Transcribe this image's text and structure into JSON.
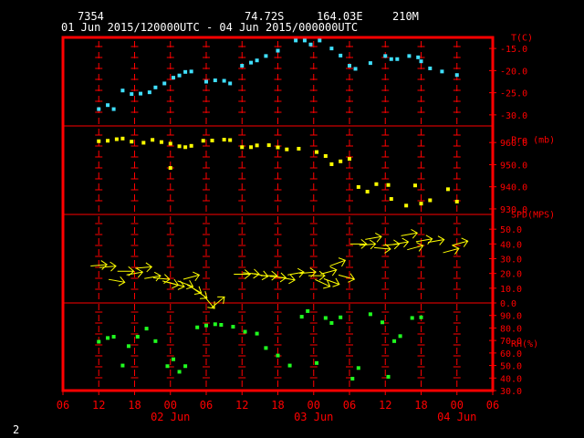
{
  "header": {
    "station_id": "7354",
    "lat": "74.72S",
    "lon": "164.03E",
    "elev": "210M",
    "time_range": "01 Jun 2015/120000UTC - 04 Jun 2015/000000UTC"
  },
  "footer": {
    "page_number": "2"
  },
  "colors": {
    "frame": "#ff0000",
    "axis": "#ff0000",
    "temp": "#40e0ff",
    "pres": "#ffff00",
    "wind": "#ffff00",
    "rh": "#20ff20"
  },
  "chart_data": {
    "type": "scatter",
    "x_axis": {
      "unit": "hours since 2015-06-01 00:00 UTC",
      "range_hours": [
        6,
        78
      ],
      "tick_labels": [
        "06",
        "12",
        "18",
        "00",
        "06",
        "12",
        "18",
        "00",
        "06",
        "12",
        "18",
        "00",
        "06"
      ],
      "tick_hours": [
        6,
        12,
        18,
        24,
        30,
        36,
        42,
        48,
        54,
        60,
        66,
        72,
        78
      ],
      "day_labels": [
        {
          "label": "02 Jun",
          "hour": 24
        },
        {
          "label": "03 Jun",
          "hour": 48
        },
        {
          "label": "04 Jun",
          "hour": 72
        }
      ]
    },
    "panels": [
      {
        "name": "temperature",
        "label": "T(C)",
        "ticks": [
          "-15.0",
          "-20.0",
          "-25.0",
          "-30.0"
        ],
        "tick_values": [
          -15,
          -20,
          -25,
          -30
        ],
        "range": [
          -32.5,
          -12.5
        ],
        "points": [
          {
            "x": 12.0,
            "y": -28.7
          },
          {
            "x": 13.5,
            "y": -27.8
          },
          {
            "x": 14.5,
            "y": -28.7
          },
          {
            "x": 16.0,
            "y": -24.5
          },
          {
            "x": 17.5,
            "y": -25.3
          },
          {
            "x": 19.0,
            "y": -25.2
          },
          {
            "x": 20.5,
            "y": -24.9
          },
          {
            "x": 21.5,
            "y": -23.8
          },
          {
            "x": 23.0,
            "y": -22.9
          },
          {
            "x": 24.5,
            "y": -21.6
          },
          {
            "x": 25.5,
            "y": -21.1
          },
          {
            "x": 26.5,
            "y": -20.3
          },
          {
            "x": 27.5,
            "y": -20.2
          },
          {
            "x": 30.0,
            "y": -22.5
          },
          {
            "x": 31.5,
            "y": -22.2
          },
          {
            "x": 33.0,
            "y": -22.3
          },
          {
            "x": 34.0,
            "y": -22.9
          },
          {
            "x": 36.0,
            "y": -18.9
          },
          {
            "x": 37.5,
            "y": -18.2
          },
          {
            "x": 38.5,
            "y": -17.7
          },
          {
            "x": 40.0,
            "y": -16.7
          },
          {
            "x": 42.0,
            "y": -15.5
          },
          {
            "x": 45.0,
            "y": -13.2
          },
          {
            "x": 46.5,
            "y": -13.2
          },
          {
            "x": 47.5,
            "y": -14.1
          },
          {
            "x": 49.0,
            "y": -13.2
          },
          {
            "x": 51.0,
            "y": -15.0
          },
          {
            "x": 52.5,
            "y": -16.6
          },
          {
            "x": 54.0,
            "y": -18.9
          },
          {
            "x": 55.0,
            "y": -19.6
          },
          {
            "x": 57.5,
            "y": -18.3
          },
          {
            "x": 60.0,
            "y": -16.7
          },
          {
            "x": 61.0,
            "y": -17.4
          },
          {
            "x": 62.0,
            "y": -17.4
          },
          {
            "x": 64.0,
            "y": -16.7
          },
          {
            "x": 65.5,
            "y": -17.0
          },
          {
            "x": 66.0,
            "y": -17.9
          },
          {
            "x": 67.5,
            "y": -19.5
          },
          {
            "x": 69.5,
            "y": -20.2
          },
          {
            "x": 72.0,
            "y": -21.0
          }
        ]
      },
      {
        "name": "pressure",
        "label": "Pre (mb)",
        "ticks": [
          "960.0",
          "950.0",
          "940.0",
          "930.0"
        ],
        "tick_values": [
          960,
          950,
          940,
          930
        ],
        "range": [
          927.5,
          967.5
        ],
        "points": [
          {
            "x": 12.0,
            "y": 960.6
          },
          {
            "x": 13.5,
            "y": 960.8
          },
          {
            "x": 15.0,
            "y": 961.5
          },
          {
            "x": 16.0,
            "y": 961.8
          },
          {
            "x": 17.5,
            "y": 960.4
          },
          {
            "x": 19.5,
            "y": 959.9
          },
          {
            "x": 21.0,
            "y": 961.2
          },
          {
            "x": 22.5,
            "y": 960.2
          },
          {
            "x": 24.0,
            "y": 948.5
          },
          {
            "x": 24.0,
            "y": 959.5
          },
          {
            "x": 25.5,
            "y": 958.3
          },
          {
            "x": 26.5,
            "y": 957.9
          },
          {
            "x": 27.5,
            "y": 958.5
          },
          {
            "x": 29.5,
            "y": 960.8
          },
          {
            "x": 31.0,
            "y": 960.9
          },
          {
            "x": 33.0,
            "y": 961.3
          },
          {
            "x": 34.0,
            "y": 961.1
          },
          {
            "x": 36.0,
            "y": 957.9
          },
          {
            "x": 37.5,
            "y": 957.9
          },
          {
            "x": 38.5,
            "y": 958.7
          },
          {
            "x": 40.5,
            "y": 958.8
          },
          {
            "x": 42.0,
            "y": 957.8
          },
          {
            "x": 43.5,
            "y": 956.9
          },
          {
            "x": 45.5,
            "y": 957.2
          },
          {
            "x": 48.5,
            "y": 955.7
          },
          {
            "x": 50.0,
            "y": 953.9
          },
          {
            "x": 51.0,
            "y": 950.2
          },
          {
            "x": 52.5,
            "y": 951.5
          },
          {
            "x": 54.0,
            "y": 952.6
          },
          {
            "x": 55.5,
            "y": 939.9
          },
          {
            "x": 57.0,
            "y": 937.8
          },
          {
            "x": 58.5,
            "y": 941.2
          },
          {
            "x": 60.5,
            "y": 940.8
          },
          {
            "x": 61.0,
            "y": 934.5
          },
          {
            "x": 63.5,
            "y": 931.5
          },
          {
            "x": 65.0,
            "y": 940.6
          },
          {
            "x": 66.0,
            "y": 932.4
          },
          {
            "x": 67.5,
            "y": 933.9
          },
          {
            "x": 70.5,
            "y": 938.9
          },
          {
            "x": 72.0,
            "y": 933.3
          }
        ]
      },
      {
        "name": "wind_speed",
        "label": "SPD(MPS)",
        "ticks": [
          "50.0",
          "40.0",
          "30.0",
          "20.0",
          "10.0",
          "0.0"
        ],
        "tick_values": [
          50,
          40,
          30,
          20,
          10,
          0
        ],
        "range": [
          0,
          60
        ],
        "points": [
          {
            "x": 12.0,
            "y": 25.5,
            "dir": 5
          },
          {
            "x": 13.5,
            "y": 24.5,
            "dir": 5
          },
          {
            "x": 15.0,
            "y": 15.0,
            "dir": -10
          },
          {
            "x": 16.5,
            "y": 21.5,
            "dir": 0
          },
          {
            "x": 18.0,
            "y": 20.0,
            "dir": 10
          },
          {
            "x": 19.5,
            "y": 24.0,
            "dir": 5
          },
          {
            "x": 21.0,
            "y": 17.5,
            "dir": 10
          },
          {
            "x": 22.5,
            "y": 16.5,
            "dir": -5
          },
          {
            "x": 24.0,
            "y": 13.5,
            "dir": -15
          },
          {
            "x": 25.0,
            "y": 12.5,
            "dir": -15
          },
          {
            "x": 26.5,
            "y": 13.0,
            "dir": -20
          },
          {
            "x": 27.5,
            "y": 17.5,
            "dir": 15
          },
          {
            "x": 28.0,
            "y": 9.5,
            "dir": -30
          },
          {
            "x": 29.0,
            "y": 6.5,
            "dir": -35
          },
          {
            "x": 30.5,
            "y": 0.5,
            "dir": -50
          },
          {
            "x": 32.0,
            "y": 0.5,
            "dir": 40
          },
          {
            "x": 36.0,
            "y": 19.5,
            "dir": 0
          },
          {
            "x": 37.5,
            "y": 20.0,
            "dir": -5
          },
          {
            "x": 39.0,
            "y": 19.0,
            "dir": -10
          },
          {
            "x": 40.5,
            "y": 18.5,
            "dir": 0
          },
          {
            "x": 42.0,
            "y": 17.5,
            "dir": -5
          },
          {
            "x": 43.5,
            "y": 16.5,
            "dir": -10
          },
          {
            "x": 45.0,
            "y": 20.0,
            "dir": 10
          },
          {
            "x": 47.0,
            "y": 20.5,
            "dir": 5
          },
          {
            "x": 48.5,
            "y": 18.5,
            "dir": 0
          },
          {
            "x": 49.5,
            "y": 13.5,
            "dir": -25
          },
          {
            "x": 50.5,
            "y": 21.0,
            "dir": 15
          },
          {
            "x": 51.0,
            "y": 14.5,
            "dir": -20
          },
          {
            "x": 52.0,
            "y": 27.0,
            "dir": 20
          },
          {
            "x": 53.5,
            "y": 17.5,
            "dir": -15
          },
          {
            "x": 55.5,
            "y": 40.0,
            "dir": 0
          },
          {
            "x": 57.0,
            "y": 39.5,
            "dir": 5
          },
          {
            "x": 58.0,
            "y": 44.0,
            "dir": 10
          },
          {
            "x": 59.5,
            "y": 37.0,
            "dir": -5
          },
          {
            "x": 61.0,
            "y": 39.5,
            "dir": 5
          },
          {
            "x": 62.5,
            "y": 40.5,
            "dir": 10
          },
          {
            "x": 64.0,
            "y": 46.5,
            "dir": 10
          },
          {
            "x": 65.0,
            "y": 37.5,
            "dir": 15
          },
          {
            "x": 66.5,
            "y": 42.5,
            "dir": 10
          },
          {
            "x": 68.5,
            "y": 42.0,
            "dir": 10
          },
          {
            "x": 71.0,
            "y": 35.5,
            "dir": 15
          },
          {
            "x": 72.5,
            "y": 40.5,
            "dir": 15
          }
        ]
      },
      {
        "name": "relative_humidity",
        "label": "RH(%)",
        "ticks": [
          "90.0",
          "80.0",
          "70.0",
          "60.0",
          "50.0",
          "40.0",
          "30.0"
        ],
        "tick_values": [
          90,
          80,
          70,
          60,
          50,
          40,
          30
        ],
        "range": [
          30,
          100
        ],
        "points": [
          {
            "x": 12.0,
            "y": 69.0
          },
          {
            "x": 13.5,
            "y": 72.0
          },
          {
            "x": 14.5,
            "y": 73.0
          },
          {
            "x": 16.0,
            "y": 50.0
          },
          {
            "x": 17.0,
            "y": 65.5
          },
          {
            "x": 18.5,
            "y": 73.0
          },
          {
            "x": 20.0,
            "y": 79.5
          },
          {
            "x": 21.5,
            "y": 69.5
          },
          {
            "x": 23.5,
            "y": 49.5
          },
          {
            "x": 24.5,
            "y": 55.0
          },
          {
            "x": 25.5,
            "y": 45.0
          },
          {
            "x": 26.5,
            "y": 49.5
          },
          {
            "x": 28.5,
            "y": 80.5
          },
          {
            "x": 30.0,
            "y": 82.0
          },
          {
            "x": 31.5,
            "y": 83.0
          },
          {
            "x": 32.5,
            "y": 82.5
          },
          {
            "x": 34.5,
            "y": 81.0
          },
          {
            "x": 36.5,
            "y": 77.0
          },
          {
            "x": 38.5,
            "y": 75.5
          },
          {
            "x": 40.0,
            "y": 64.0
          },
          {
            "x": 42.0,
            "y": 58.0
          },
          {
            "x": 44.0,
            "y": 50.0
          },
          {
            "x": 46.0,
            "y": 89.0
          },
          {
            "x": 47.0,
            "y": 93.5
          },
          {
            "x": 48.5,
            "y": 52.0
          },
          {
            "x": 50.0,
            "y": 88.0
          },
          {
            "x": 51.0,
            "y": 84.0
          },
          {
            "x": 52.5,
            "y": 88.5
          },
          {
            "x": 54.5,
            "y": 39.5
          },
          {
            "x": 55.5,
            "y": 48.0
          },
          {
            "x": 57.5,
            "y": 91.0
          },
          {
            "x": 59.5,
            "y": 84.5
          },
          {
            "x": 60.5,
            "y": 41.0
          },
          {
            "x": 61.5,
            "y": 69.5
          },
          {
            "x": 62.5,
            "y": 73.5
          },
          {
            "x": 64.5,
            "y": 88.0
          },
          {
            "x": 66.0,
            "y": 88.5
          }
        ]
      }
    ]
  }
}
